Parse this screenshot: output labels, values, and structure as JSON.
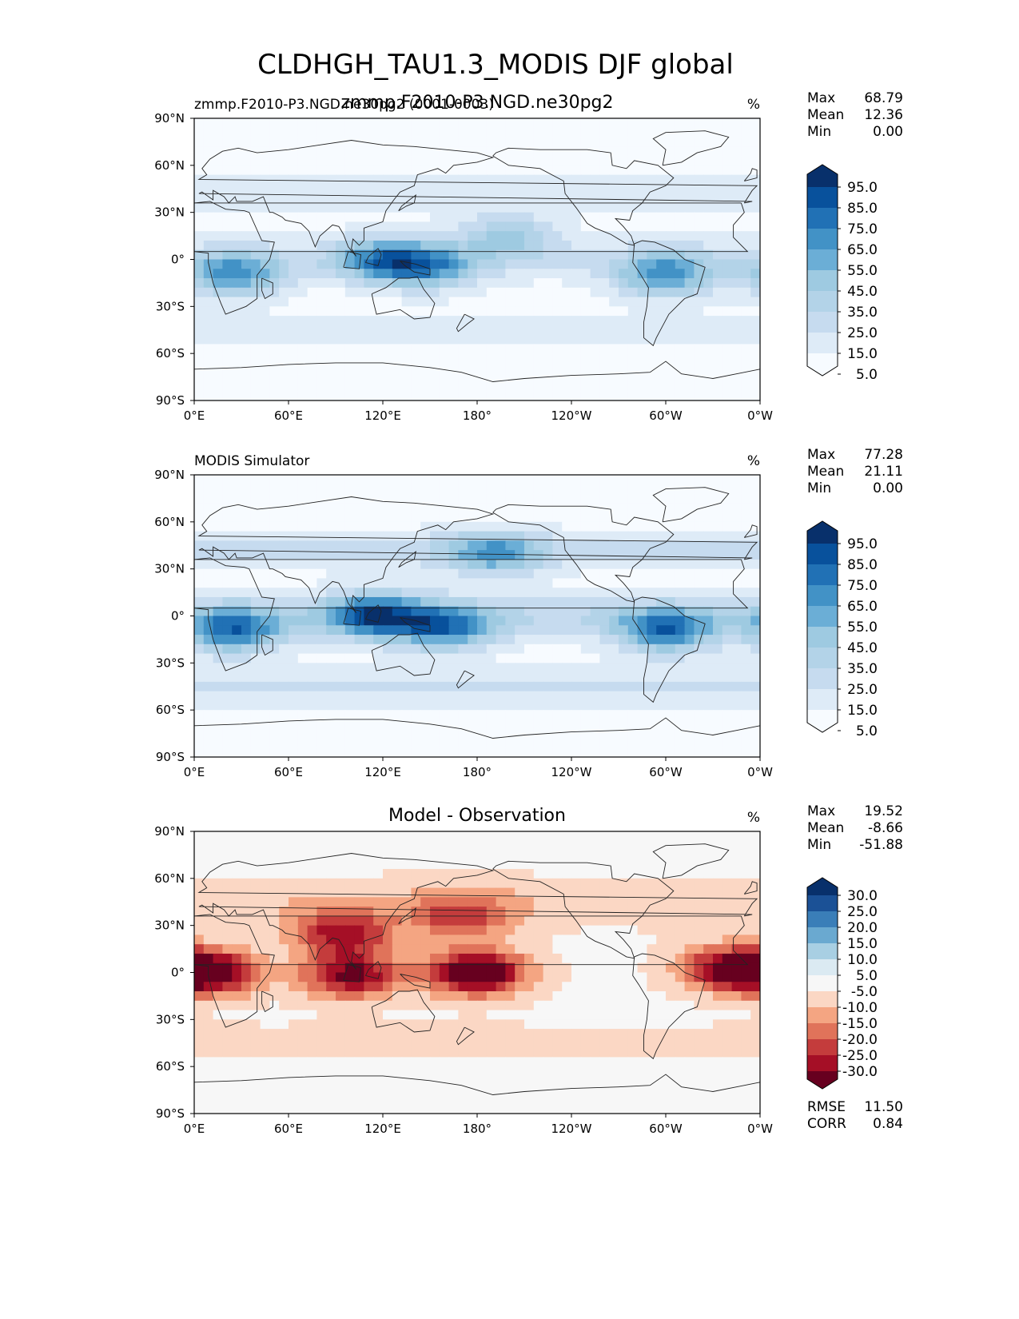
{
  "figure": {
    "title": "CLDHGH_TAU1.3_MODIS DJF global"
  },
  "colors": {
    "blues": [
      "#f7fbff",
      "#deebf7",
      "#c6dbef",
      "#b3d3e8",
      "#9ecae1",
      "#6baed6",
      "#4292c6",
      "#2171b5",
      "#08519c",
      "#08306b"
    ],
    "diff": [
      "#67001f",
      "#a50f26",
      "#c43c3c",
      "#e0735a",
      "#f4a582",
      "#fbd7c4",
      "#f7f7f7",
      "#dbeaf2",
      "#a8cfe3",
      "#6aa9d0",
      "#3a7eb8",
      "#1b5196",
      "#08306b"
    ],
    "land": "#222222",
    "axis": "#000000"
  },
  "chart_data": [
    {
      "type": "heatmap",
      "id": "test",
      "title_left": "zmmp.F2010-P3.NGD.ne30pg2 (0001-0003)",
      "title_center": "zmmp.F2010-P3.NGD.ne30pg2",
      "units": "%",
      "stats": [
        [
          "Max",
          "68.79"
        ],
        [
          "Mean",
          "12.36"
        ],
        [
          "Min",
          "0.00"
        ]
      ],
      "colorbar_levels": [
        "95.0",
        "85.0",
        "75.0",
        "65.0",
        "55.0",
        "45.0",
        "35.0",
        "25.0",
        "15.0",
        "5.0"
      ],
      "x_ticks": [
        "0°E",
        "60°E",
        "120°E",
        "180°",
        "120°W",
        "60°W",
        "0°W"
      ],
      "y_ticks": [
        "90°N",
        "60°N",
        "30°N",
        "0°",
        "30°S",
        "60°S",
        "90°S"
      ],
      "hotspots": [
        {
          "lon": 25,
          "lat": -10,
          "v": 55
        },
        {
          "lon": 120,
          "lat": 0,
          "v": 50
        },
        {
          "lon": 150,
          "lat": -5,
          "v": 45
        },
        {
          "lon": 300,
          "lat": -10,
          "v": 55
        },
        {
          "lon": 200,
          "lat": 15,
          "v": 35
        }
      ]
    },
    {
      "type": "heatmap",
      "id": "ref",
      "title_left": "MODIS Simulator",
      "title_center": "",
      "units": "%",
      "stats": [
        [
          "Max",
          "77.28"
        ],
        [
          "Mean",
          "21.11"
        ],
        [
          "Min",
          "0.00"
        ]
      ],
      "colorbar_levels": [
        "95.0",
        "85.0",
        "75.0",
        "65.0",
        "55.0",
        "45.0",
        "35.0",
        "25.0",
        "15.0",
        "5.0"
      ],
      "x_ticks": [
        "0°E",
        "60°E",
        "120°E",
        "180°",
        "120°W",
        "60°W",
        "0°W"
      ],
      "y_ticks": [
        "90°N",
        "60°N",
        "30°N",
        "0°",
        "30°S",
        "60°S",
        "90°S"
      ],
      "hotspots": [
        {
          "lon": 25,
          "lat": -10,
          "v": 60
        },
        {
          "lon": 115,
          "lat": 0,
          "v": 65
        },
        {
          "lon": 160,
          "lat": -8,
          "v": 55
        },
        {
          "lon": 300,
          "lat": -10,
          "v": 60
        },
        {
          "lon": 190,
          "lat": 40,
          "v": 45
        }
      ]
    },
    {
      "type": "heatmap",
      "id": "diff",
      "title_left": "",
      "title_center": "Model - Observation",
      "units": "%",
      "stats": [
        [
          "Max",
          "19.52"
        ],
        [
          "Mean",
          "-8.66"
        ],
        [
          "Min",
          "-51.88"
        ]
      ],
      "colorbar_levels": [
        "30.0",
        "25.0",
        "20.0",
        "15.0",
        "10.0",
        "5.0",
        "-5.0",
        "-10.0",
        "-15.0",
        "-20.0",
        "-25.0",
        "-30.0"
      ],
      "x_ticks": [
        "0°E",
        "60°E",
        "120°E",
        "180°",
        "120°W",
        "60°W",
        "0°W"
      ],
      "y_ticks": [
        "90°N",
        "60°N",
        "30°N",
        "0°",
        "30°S",
        "60°S",
        "90°S"
      ],
      "extra_stats": [
        [
          "RMSE",
          "11.50"
        ],
        [
          "CORR",
          "0.84"
        ]
      ],
      "hotspots": [
        {
          "lon": 180,
          "lat": 0,
          "v": -35
        },
        {
          "lon": 10,
          "lat": 0,
          "v": -30
        },
        {
          "lon": 100,
          "lat": -2,
          "v": -28
        },
        {
          "lon": 340,
          "lat": 3,
          "v": -25
        },
        {
          "lon": 95,
          "lat": 25,
          "v": -25
        },
        {
          "lon": 170,
          "lat": 35,
          "v": -18
        }
      ]
    }
  ]
}
